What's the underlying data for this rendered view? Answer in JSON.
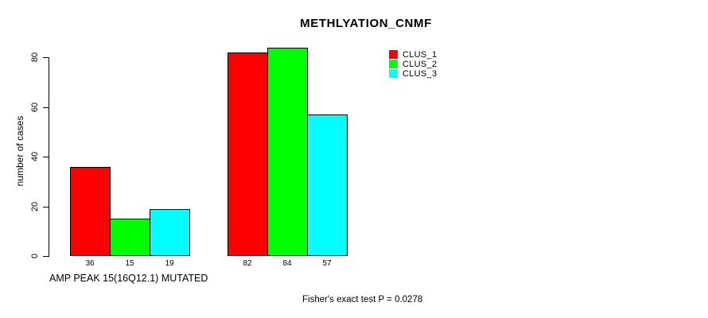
{
  "title": "METHLYATION_CNMF",
  "y_axis_label": "number of cases",
  "x_axis_label": "AMP PEAK 15(16Q12.1) MUTATED",
  "annotation": "Fisher's exact test P = 0.0278",
  "colors": {
    "clus_1": "#ff0000",
    "clus_2": "#00ff00",
    "clus_3": "#00ffff",
    "axis": "#000000",
    "background": "#ffffff"
  },
  "chart_data": {
    "type": "bar",
    "title": "METHLYATION_CNMF",
    "xlabel": "AMP PEAK 15(16Q12.1) MUTATED",
    "ylabel": "number of cases",
    "ylim": [
      0,
      80
    ],
    "yticks": [
      0,
      20,
      40,
      60,
      80
    ],
    "grid": false,
    "legend_position": "top-right",
    "categories": [
      "AMP PEAK 15(16Q12.1) MUTATED",
      ""
    ],
    "series": [
      {
        "name": "CLUS_1",
        "color": "#ff0000",
        "values": [
          36,
          82
        ]
      },
      {
        "name": "CLUS_2",
        "color": "#00ff00",
        "values": [
          15,
          84
        ]
      },
      {
        "name": "CLUS_3",
        "color": "#00ffff",
        "values": [
          19,
          57
        ]
      }
    ],
    "bar_value_labels": [
      [
        36,
        15,
        19
      ],
      [
        82,
        84,
        57
      ]
    ],
    "annotation": "Fisher's exact test P = 0.0278"
  }
}
